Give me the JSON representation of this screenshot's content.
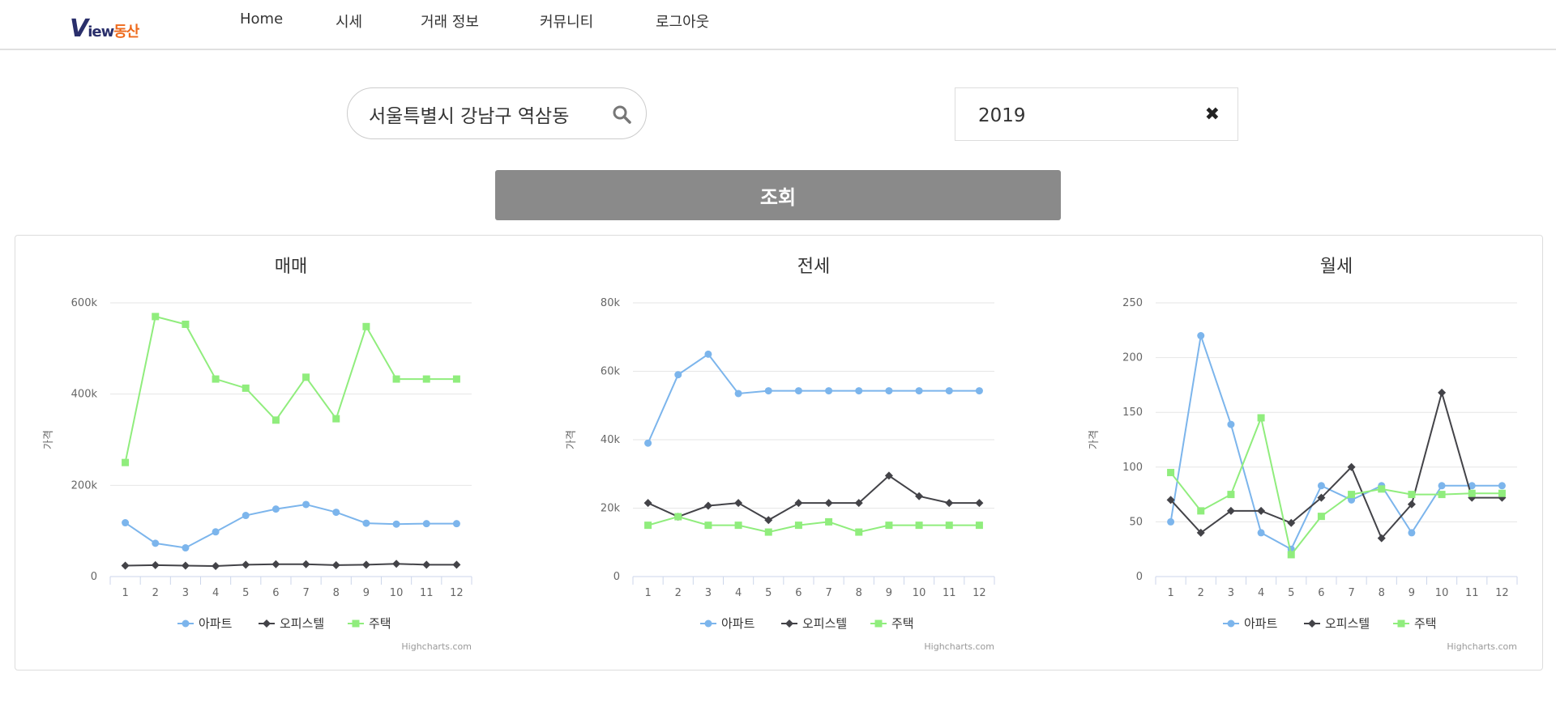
{
  "nav": {
    "logo": {
      "v": "V",
      "iew": "iew",
      "dong": "동산"
    },
    "items": [
      "Home",
      "시세",
      "거래 정보",
      "커뮤니티",
      "로그아웃"
    ]
  },
  "search": {
    "value": "서울특별시 강남구 역삼동",
    "placeholder": ""
  },
  "year": {
    "value": "2019"
  },
  "query_button": "조회",
  "chart_data": [
    {
      "type": "line",
      "title": "매매",
      "ylabel": "가격",
      "categories": [
        "1",
        "2",
        "3",
        "4",
        "5",
        "6",
        "7",
        "8",
        "9",
        "10",
        "11",
        "12"
      ],
      "yticks": [
        "0",
        "200k",
        "400k",
        "600k"
      ],
      "ylim": [
        0,
        600000
      ],
      "series": [
        {
          "name": "아파트",
          "color": "#7cb5ec",
          "marker": "circle",
          "values": [
            118000,
            73000,
            63000,
            98000,
            134000,
            148000,
            158000,
            141000,
            117000,
            115000,
            116000,
            116000
          ]
        },
        {
          "name": "오피스텔",
          "color": "#434348",
          "marker": "diamond",
          "values": [
            24000,
            25000,
            24000,
            23000,
            26000,
            27000,
            27000,
            25000,
            26000,
            28000,
            26000,
            26000
          ]
        },
        {
          "name": "주택",
          "color": "#90ed7d",
          "marker": "square",
          "values": [
            250000,
            570000,
            553000,
            433000,
            413000,
            343000,
            437000,
            346000,
            548000,
            433000,
            433000,
            433000
          ]
        }
      ],
      "credits": "Highcharts.com"
    },
    {
      "type": "line",
      "title": "전세",
      "ylabel": "가격",
      "categories": [
        "1",
        "2",
        "3",
        "4",
        "5",
        "6",
        "7",
        "8",
        "9",
        "10",
        "11",
        "12"
      ],
      "yticks": [
        "0",
        "20k",
        "40k",
        "60k",
        "80k"
      ],
      "ylim": [
        0,
        80000
      ],
      "series": [
        {
          "name": "아파트",
          "color": "#7cb5ec",
          "marker": "circle",
          "values": [
            39000,
            59000,
            65000,
            53500,
            54300,
            54300,
            54300,
            54300,
            54300,
            54300,
            54300,
            54300
          ]
        },
        {
          "name": "오피스텔",
          "color": "#434348",
          "marker": "diamond",
          "values": [
            21500,
            17500,
            20700,
            21500,
            16500,
            21500,
            21500,
            21500,
            29500,
            23500,
            21500,
            21500
          ]
        },
        {
          "name": "주택",
          "color": "#90ed7d",
          "marker": "square",
          "values": [
            15000,
            17500,
            15000,
            15000,
            13000,
            15000,
            16000,
            13000,
            15000,
            15000,
            15000,
            15000
          ]
        }
      ],
      "credits": "Highcharts.com"
    },
    {
      "type": "line",
      "title": "월세",
      "ylabel": "가격",
      "categories": [
        "1",
        "2",
        "3",
        "4",
        "5",
        "6",
        "7",
        "8",
        "9",
        "10",
        "11",
        "12"
      ],
      "yticks": [
        "0",
        "50",
        "100",
        "150",
        "200",
        "250"
      ],
      "ylim": [
        0,
        250
      ],
      "series": [
        {
          "name": "아파트",
          "color": "#7cb5ec",
          "marker": "circle",
          "values": [
            50,
            220,
            139,
            40,
            25,
            83,
            70,
            83,
            40,
            83,
            83,
            83
          ]
        },
        {
          "name": "오피스텔",
          "color": "#434348",
          "marker": "diamond",
          "values": [
            70,
            40,
            60,
            60,
            49,
            72,
            100,
            35,
            66,
            168,
            72,
            72
          ]
        },
        {
          "name": "주택",
          "color": "#90ed7d",
          "marker": "square",
          "values": [
            95,
            60,
            75,
            145,
            20,
            55,
            75,
            80,
            75,
            75,
            76,
            76
          ]
        }
      ],
      "credits": "Highcharts.com"
    }
  ]
}
